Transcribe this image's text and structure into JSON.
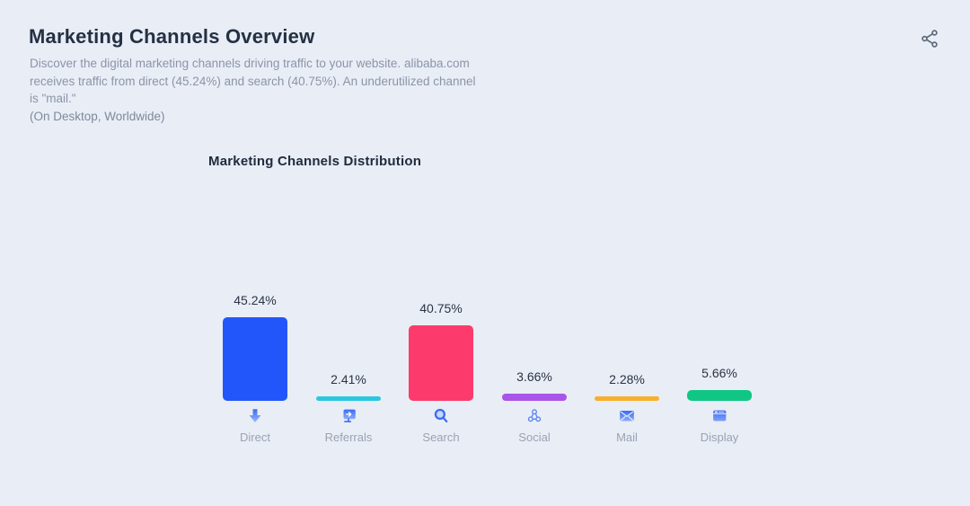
{
  "page": {
    "title": "Marketing Channels Overview",
    "description_lines": [
      "Discover the digital marketing channels driving traffic to your website. alibaba.com",
      "receives traffic from direct (45.24%) and search (40.75%). An underutilized channel",
      "is \"mail.\""
    ],
    "scope_note": "(On Desktop, Worldwide)"
  },
  "chart_data": {
    "type": "bar",
    "title": "Marketing Channels Distribution",
    "categories": [
      "Direct",
      "Referrals",
      "Search",
      "Social",
      "Mail",
      "Display"
    ],
    "values": [
      45.24,
      2.41,
      40.75,
      3.66,
      2.28,
      5.66
    ],
    "value_labels": [
      "45.24%",
      "2.41%",
      "40.75%",
      "3.66%",
      "2.28%",
      "5.66%"
    ],
    "bar_colors": [
      "#2356fa",
      "#2bc7e1",
      "#fc3a6b",
      "#a855e8",
      "#f8af2b",
      "#11c685"
    ],
    "icons": [
      "arrow-down-icon",
      "referral-monitor-icon",
      "search-icon",
      "social-nodes-icon",
      "mail-envelope-icon",
      "display-window-icon"
    ],
    "xlabel": "",
    "ylabel": "",
    "ylim": [
      0,
      50
    ],
    "grid": false,
    "legend": false,
    "unit": "%"
  },
  "colors": {
    "background": "#e9edf6",
    "title_text": "#243143",
    "description_text": "#8b95a7",
    "chart_title_text": "#202c3e",
    "value_label_text": "#2a3443",
    "category_label_text": "#9aa3b3",
    "icon_blue": "#4a7df2",
    "share_icon": "#5f6b7a"
  }
}
